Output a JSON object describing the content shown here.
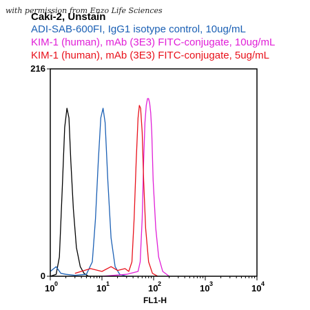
{
  "watermark": "with permission from Enzo Life Sciences",
  "legend": [
    {
      "text": "Caki-2, Unstain",
      "color": "#000000"
    },
    {
      "text": "ADI-SAB-600FI, IgG1 isotype control, 10ug/mL",
      "color": "#1a5fb4"
    },
    {
      "text": "KIM-1 (human),  mAb (3E3)  FITC-conjugate, 10ug/mL",
      "color": "#e01ed7"
    },
    {
      "text": "KIM-1 (human),  mAb (3E3)  FITC-conjugate, 5ug/mL",
      "color": "#e8101a"
    }
  ],
  "chart_data": {
    "type": "line",
    "xlabel": "FL1-H",
    "ylabel": "",
    "xscale": "log",
    "xlim": [
      1,
      10000
    ],
    "ylim": [
      0,
      216
    ],
    "x_tick_labels": [
      {
        "base": "10",
        "exp": "0"
      },
      {
        "base": "10",
        "exp": "1"
      },
      {
        "base": "10",
        "exp": "2"
      },
      {
        "base": "10",
        "exp": "3"
      },
      {
        "base": "10",
        "exp": "4"
      }
    ],
    "y_tick_labels": [
      "0",
      "216"
    ],
    "grid": false,
    "series": [
      {
        "name": "Caki-2, Unstain",
        "color": "#000000",
        "points": [
          [
            1,
            0
          ],
          [
            1.3,
            2
          ],
          [
            1.5,
            20
          ],
          [
            1.7,
            90
          ],
          [
            1.9,
            155
          ],
          [
            2.1,
            175
          ],
          [
            2.3,
            165
          ],
          [
            2.5,
            120
          ],
          [
            2.8,
            70
          ],
          [
            3.2,
            30
          ],
          [
            3.8,
            10
          ],
          [
            4.5,
            3
          ],
          [
            5.5,
            0
          ],
          [
            10,
            0
          ]
        ]
      },
      {
        "name": "ADI-SAB-600FI, IgG1 isotype control, 10ug/mL",
        "color": "#1a5fb4",
        "points": [
          [
            1,
            5
          ],
          [
            1.3,
            10
          ],
          [
            1.6,
            3
          ],
          [
            2,
            2
          ],
          [
            3,
            1
          ],
          [
            5,
            2
          ],
          [
            6.5,
            15
          ],
          [
            7.5,
            60
          ],
          [
            8.5,
            120
          ],
          [
            9.5,
            165
          ],
          [
            10.5,
            175
          ],
          [
            11.5,
            160
          ],
          [
            13,
            100
          ],
          [
            15,
            40
          ],
          [
            18,
            10
          ],
          [
            22,
            2
          ],
          [
            30,
            0
          ],
          [
            40,
            0
          ]
        ]
      },
      {
        "name": "KIM-1 (human),  mAb (3E3)  FITC-conjugate, 10ug/mL",
        "color": "#e01ed7",
        "points": [
          [
            10,
            0
          ],
          [
            30,
            2
          ],
          [
            50,
            5
          ],
          [
            55,
            15
          ],
          [
            60,
            60
          ],
          [
            64,
            120
          ],
          [
            68,
            160
          ],
          [
            72,
            178
          ],
          [
            76,
            185
          ],
          [
            80,
            185
          ],
          [
            84,
            180
          ],
          [
            88,
            170
          ],
          [
            92,
            150
          ],
          [
            98,
            100
          ],
          [
            110,
            50
          ],
          [
            125,
            20
          ],
          [
            150,
            5
          ],
          [
            200,
            0
          ]
        ]
      },
      {
        "name": "KIM-1 (human),  mAb (3E3)  FITC-conjugate, 5ug/mL",
        "color": "#e8101a",
        "points": [
          [
            3,
            3
          ],
          [
            6,
            8
          ],
          [
            10,
            5
          ],
          [
            15,
            10
          ],
          [
            20,
            6
          ],
          [
            28,
            8
          ],
          [
            33,
            5
          ],
          [
            38,
            15
          ],
          [
            42,
            60
          ],
          [
            46,
            120
          ],
          [
            50,
            165
          ],
          [
            53,
            178
          ],
          [
            56,
            175
          ],
          [
            60,
            150
          ],
          [
            64,
            100
          ],
          [
            70,
            50
          ],
          [
            80,
            15
          ],
          [
            95,
            3
          ],
          [
            120,
            0
          ]
        ]
      }
    ]
  }
}
